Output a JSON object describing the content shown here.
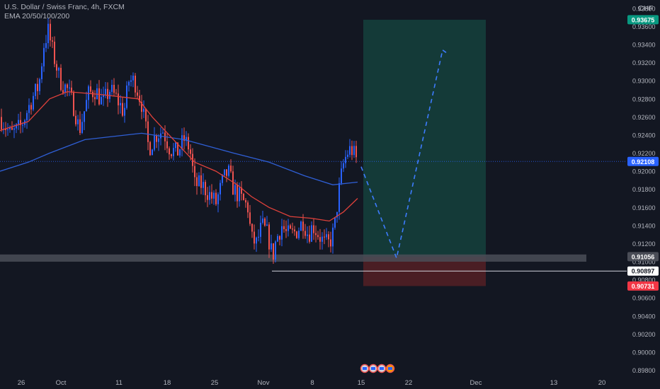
{
  "header": {
    "title": "U.S. Dollar / Swiss Franc, 4h, FXCM",
    "indicator": "EMA 20/50/100/200",
    "currency": "CHF"
  },
  "colors": {
    "background": "#131722",
    "up": "#2962ff",
    "down": "#ef5350",
    "ema_fast": "#e0413b",
    "ema_slow": "#2f5fd6",
    "target_zone": "#143a38",
    "stop_zone": "#4a1e24",
    "projection": "#3d7cff",
    "support_band": "#4a4d57"
  },
  "chart_data": {
    "type": "candlestick",
    "symbol": "USDCHF",
    "timeframe": "4h",
    "ylim": [
      0.898,
      0.9388
    ],
    "y_ticks": [
      "0.89800",
      "0.90000",
      "0.90200",
      "0.90400",
      "0.90600",
      "0.90800",
      "0.91000",
      "0.91200",
      "0.91400",
      "0.91600",
      "0.91800",
      "0.92000",
      "0.92200",
      "0.92400",
      "0.92600",
      "0.92800",
      "0.93000",
      "0.93200",
      "0.93400",
      "0.93600",
      "0.93800"
    ],
    "x_ticks": [
      "26",
      "Oct",
      "11",
      "18",
      "25",
      "Nov",
      "8",
      "15",
      "22",
      "Dec",
      "13",
      "20"
    ],
    "price_labels": [
      {
        "name": "target",
        "value": "0.93675",
        "color": "#089981"
      },
      {
        "name": "current",
        "value": "0.92108",
        "color": "#2962ff"
      },
      {
        "name": "support",
        "value": "0.91056",
        "color": "#4a4d57"
      },
      {
        "name": "low-line",
        "value": "0.90897",
        "color": "#ffffff"
      },
      {
        "name": "stop",
        "value": "0.90731",
        "color": "#f23645"
      }
    ],
    "price_path": [
      [
        0,
        0.926
      ],
      [
        15,
        0.924
      ],
      [
        30,
        0.925
      ],
      [
        45,
        0.928
      ],
      [
        55,
        0.9295
      ],
      [
        62,
        0.934
      ],
      [
        68,
        0.9355
      ],
      [
        75,
        0.933
      ],
      [
        85,
        0.93
      ],
      [
        95,
        0.929
      ],
      [
        105,
        0.927
      ],
      [
        112,
        0.9245
      ],
      [
        125,
        0.9285
      ],
      [
        135,
        0.929
      ],
      [
        145,
        0.9275
      ],
      [
        155,
        0.929
      ],
      [
        165,
        0.928
      ],
      [
        175,
        0.9265
      ],
      [
        182,
        0.93
      ],
      [
        190,
        0.93
      ],
      [
        200,
        0.9275
      ],
      [
        210,
        0.9225
      ],
      [
        220,
        0.924
      ],
      [
        230,
        0.9245
      ],
      [
        240,
        0.9225
      ],
      [
        250,
        0.922
      ],
      [
        260,
        0.9235
      ],
      [
        268,
        0.9225
      ],
      [
        275,
        0.9185
      ],
      [
        285,
        0.9185
      ],
      [
        295,
        0.9175
      ],
      [
        305,
        0.9165
      ],
      [
        315,
        0.919
      ],
      [
        322,
        0.92
      ],
      [
        330,
        0.918
      ],
      [
        340,
        0.917
      ],
      [
        350,
        0.916
      ],
      [
        355,
        0.9125
      ],
      [
        362,
        0.912
      ],
      [
        370,
        0.914
      ],
      [
        378,
        0.913
      ],
      [
        385,
        0.9105
      ],
      [
        390,
        0.9125
      ],
      [
        398,
        0.914
      ],
      [
        405,
        0.913
      ],
      [
        412,
        0.913
      ],
      [
        420,
        0.9135
      ],
      [
        428,
        0.9145
      ],
      [
        435,
        0.913
      ],
      [
        442,
        0.914
      ],
      [
        450,
        0.913
      ],
      [
        458,
        0.912
      ],
      [
        465,
        0.912
      ],
      [
        472,
        0.9135
      ],
      [
        478,
        0.9175
      ],
      [
        484,
        0.9205
      ],
      [
        490,
        0.922
      ],
      [
        496,
        0.9225
      ],
      [
        502,
        0.9215
      ],
      [
        505,
        0.921
      ]
    ],
    "ema_fast": [
      [
        0,
        0.9245
      ],
      [
        40,
        0.9255
      ],
      [
        70,
        0.928
      ],
      [
        95,
        0.9288
      ],
      [
        140,
        0.9285
      ],
      [
        195,
        0.928
      ],
      [
        215,
        0.926
      ],
      [
        245,
        0.9235
      ],
      [
        275,
        0.921
      ],
      [
        305,
        0.92
      ],
      [
        335,
        0.9185
      ],
      [
        355,
        0.9172
      ],
      [
        380,
        0.916
      ],
      [
        410,
        0.915
      ],
      [
        440,
        0.9148
      ],
      [
        465,
        0.9145
      ],
      [
        485,
        0.9155
      ],
      [
        505,
        0.917
      ]
    ],
    "ema_slow": [
      [
        0,
        0.92
      ],
      [
        40,
        0.921
      ],
      [
        70,
        0.922
      ],
      [
        120,
        0.9235
      ],
      [
        200,
        0.9242
      ],
      [
        260,
        0.9235
      ],
      [
        330,
        0.922
      ],
      [
        380,
        0.921
      ],
      [
        430,
        0.9195
      ],
      [
        470,
        0.9185
      ],
      [
        505,
        0.9188
      ]
    ],
    "projection": [
      [
        510,
        0.9205
      ],
      [
        560,
        0.9104
      ],
      [
        625,
        0.9334
      ],
      [
        632,
        0.933
      ]
    ],
    "zones": {
      "entry": 0.91056,
      "target": 0.93675,
      "stop": 0.90731,
      "x_start": 513,
      "x_end": 686
    },
    "support_band": [
      0.91,
      0.9108
    ],
    "low_line": 0.90897,
    "grid": false
  }
}
